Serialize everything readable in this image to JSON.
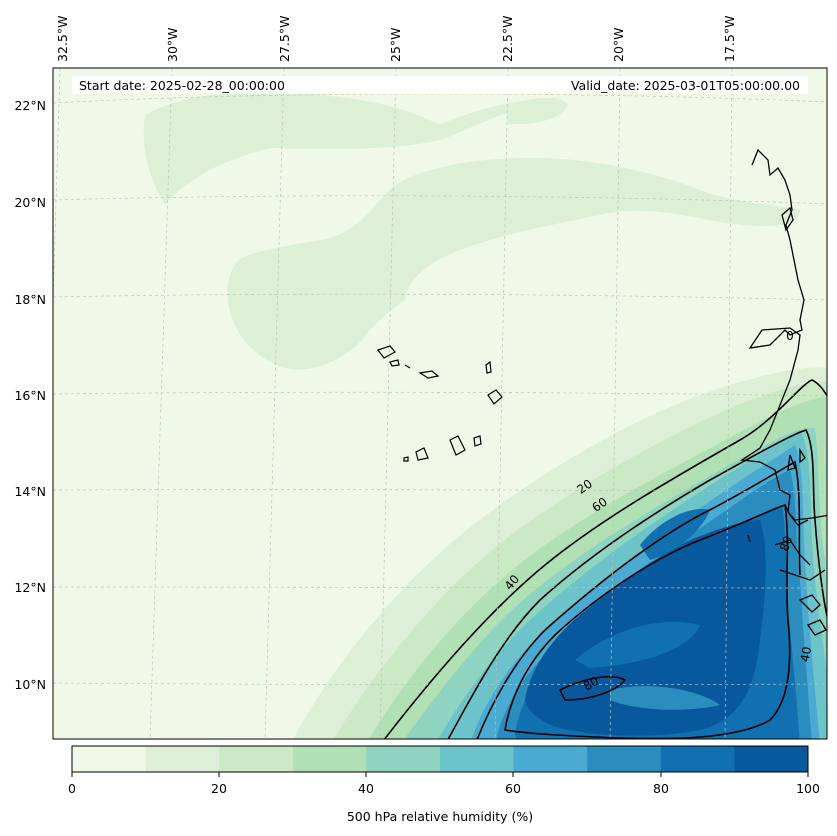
{
  "map": {
    "start_date": "Start date: 2025-02-28_00:00:00",
    "valid_date": "Valid_date: 2025-03-01T05:00:00.00",
    "lon_labels": [
      "32.5°W",
      "30°W",
      "27.5°W",
      "25°W",
      "22.5°W",
      "20°W",
      "17.5°W"
    ],
    "lat_labels": [
      "22°N",
      "20°N",
      "18°N",
      "16°N",
      "14°N",
      "12°N",
      "10°N"
    ],
    "contour_labels": [
      "20",
      "60",
      "40",
      "80",
      "80",
      "40",
      "0"
    ],
    "grid": true,
    "projection": "Lambert-style regional map with coastlines",
    "field": "500 hPa relative humidity"
  },
  "colorbar": {
    "title": "500 hPa relative humidity (%)",
    "ticks": [
      "0",
      "20",
      "40",
      "60",
      "80",
      "100"
    ],
    "levels": [
      0,
      10,
      20,
      30,
      40,
      50,
      60,
      70,
      80,
      90,
      100
    ],
    "colors": [
      "#f0f9e8",
      "#deefd8",
      "#cce9c5",
      "#b0e0b4",
      "#8fd4c0",
      "#6cc3c9",
      "#4aaad1",
      "#2b8cbe",
      "#1171b0",
      "#08589e"
    ]
  }
}
